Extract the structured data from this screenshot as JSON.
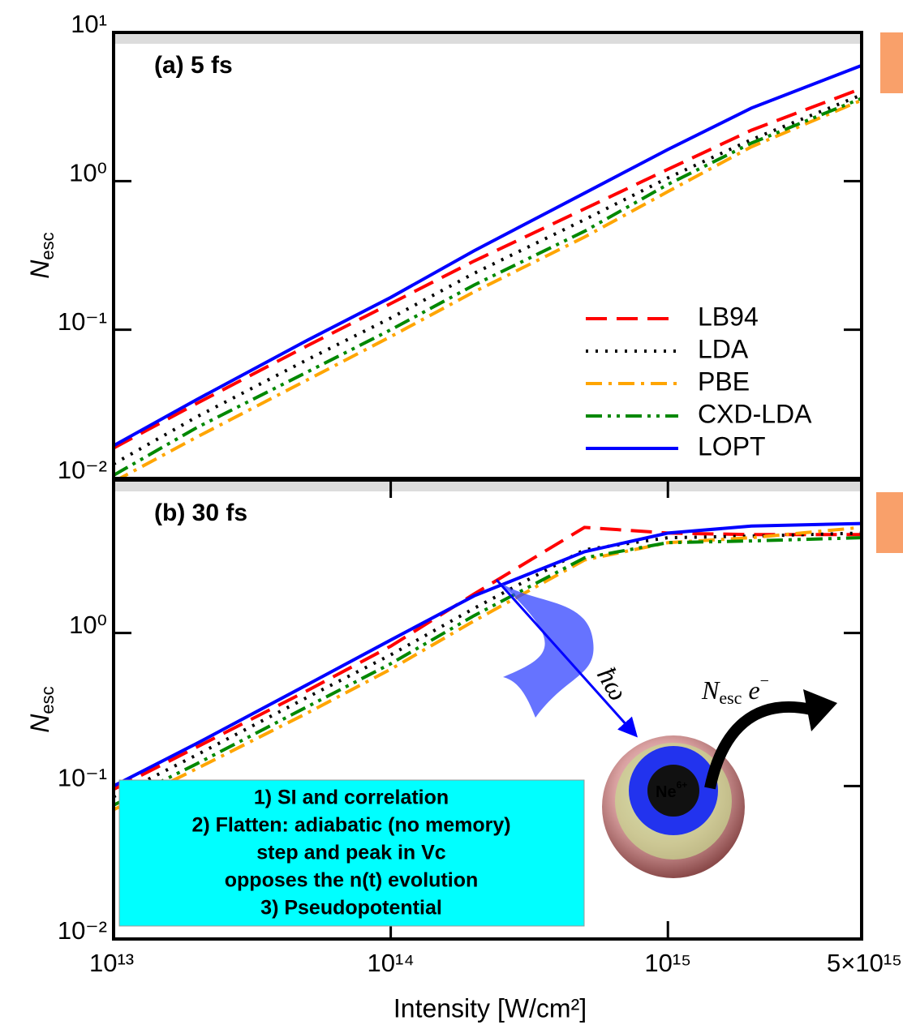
{
  "chart_data": [
    {
      "type": "line",
      "panel_label": "(a) 5 fs",
      "y_label": "N",
      "y_label_sub": "esc",
      "xlim": [
        10000000000000.0,
        5000000000000000.0
      ],
      "ylim": [
        0.01,
        10
      ],
      "log_x": true,
      "log_y": true,
      "yticks": [
        {
          "value": 0.01,
          "label": "10⁻²"
        },
        {
          "value": 0.1,
          "label": "10⁻¹"
        },
        {
          "value": 1,
          "label": "10⁰"
        },
        {
          "value": 10,
          "label": "10¹"
        }
      ],
      "x": [
        10000000000000.0,
        20000000000000.0,
        50000000000000.0,
        100000000000000.0,
        200000000000000.0,
        500000000000000.0,
        1000000000000000.0,
        2000000000000000.0,
        5000000000000000.0
      ],
      "legend": "lower right",
      "series": [
        {
          "name": "LB94",
          "color": "#ff0000",
          "dash": "dashed",
          "values": [
            0.016,
            0.032,
            0.078,
            0.15,
            0.29,
            0.65,
            1.2,
            2.2,
            4.2
          ]
        },
        {
          "name": "LDA",
          "color": "#000000",
          "dash": "dotted",
          "values": [
            0.0125,
            0.026,
            0.063,
            0.12,
            0.24,
            0.55,
            1.05,
            1.9,
            3.8
          ]
        },
        {
          "name": "PBE",
          "color": "#ffa500",
          "dash": "dashdot",
          "values": [
            0.0095,
            0.019,
            0.046,
            0.09,
            0.18,
            0.42,
            0.85,
            1.7,
            3.5
          ]
        },
        {
          "name": "CXD-LDA",
          "color": "#008800",
          "dash": "dashdotdot",
          "values": [
            0.0105,
            0.022,
            0.052,
            0.1,
            0.2,
            0.46,
            0.95,
            1.8,
            3.6
          ]
        },
        {
          "name": "LOPT",
          "color": "#0000ff",
          "dash": "solid",
          "values": [
            0.0166,
            0.034,
            0.085,
            0.165,
            0.34,
            0.83,
            1.63,
            3.1,
            6.0
          ]
        }
      ]
    },
    {
      "type": "line",
      "panel_label": "(b) 30 fs",
      "y_label": "N",
      "y_label_sub": "esc",
      "x_label": "Intensity [W/cm²]",
      "xlim": [
        10000000000000.0,
        5000000000000000.0
      ],
      "ylim": [
        0.01,
        10
      ],
      "log_x": true,
      "log_y": true,
      "xticks": [
        {
          "value": 10000000000000.0,
          "label": "10¹³"
        },
        {
          "value": 100000000000000.0,
          "label": "10¹⁴"
        },
        {
          "value": 1000000000000000.0,
          "label": "10¹⁵"
        },
        {
          "value": 5000000000000000.0,
          "label": "5×10¹⁵"
        }
      ],
      "yticks": [
        {
          "value": 0.01,
          "label": "10⁻²"
        },
        {
          "value": 0.1,
          "label": "10⁻¹"
        },
        {
          "value": 1,
          "label": "10⁰"
        }
      ],
      "x": [
        10000000000000.0,
        20000000000000.0,
        50000000000000.0,
        100000000000000.0,
        200000000000000.0,
        500000000000000.0,
        1000000000000000.0,
        2000000000000000.0,
        5000000000000000.0
      ],
      "series": [
        {
          "color": "#ff0000",
          "dash": "dashed",
          "values": [
            0.095,
            0.18,
            0.42,
            0.82,
            1.8,
            4.9,
            4.5,
            4.4,
            4.4
          ]
        },
        {
          "color": "#000000",
          "dash": "dotted",
          "values": [
            0.085,
            0.16,
            0.38,
            0.72,
            1.45,
            3.5,
            4.2,
            4.3,
            4.5
          ]
        },
        {
          "color": "#ffa500",
          "dash": "dashdot",
          "values": [
            0.07,
            0.13,
            0.3,
            0.58,
            1.2,
            3.0,
            3.9,
            4.2,
            4.9
          ]
        },
        {
          "color": "#008800",
          "dash": "dashdotdot",
          "values": [
            0.075,
            0.14,
            0.33,
            0.63,
            1.3,
            3.1,
            3.9,
            4.0,
            4.2
          ]
        },
        {
          "color": "#0000ff",
          "dash": "solid",
          "values": [
            0.1,
            0.19,
            0.46,
            0.9,
            1.75,
            3.4,
            4.5,
            5.0,
            5.2
          ]
        }
      ],
      "annotation_box": [
        "1) SI and correlation",
        "2) Flatten: adiabatic (no memory)",
        "step and peak in Vc",
        "opposes the n(t) evolution",
        "3) Pseudopotential"
      ],
      "illustration": {
        "photon": "ħω",
        "ion": "Ne",
        "ion_charge": "6+",
        "escape": "N",
        "escape_sub": "esc",
        "electron": "e",
        "electron_charge": "−"
      }
    }
  ]
}
